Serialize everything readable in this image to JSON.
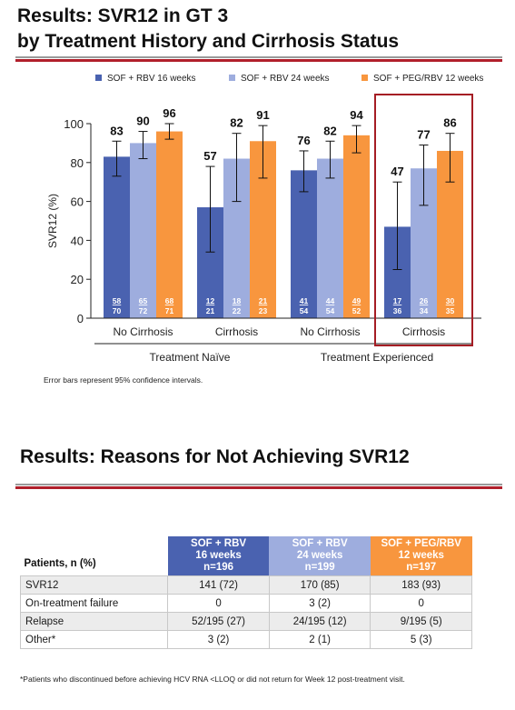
{
  "slide1": {
    "title_line1": "Results: SVR12 in GT 3",
    "title_line2": "by Treatment History and Cirrhosis Status",
    "note": "Error bars represent 95% confidence intervals."
  },
  "chart_data": {
    "type": "bar",
    "ylabel": "SVR12 (%)",
    "ylim": [
      0,
      100
    ],
    "yticks": [
      0,
      20,
      40,
      60,
      80,
      100
    ],
    "categories": [
      "No Cirrhosis",
      "Cirrhosis",
      "No Cirrhosis",
      "Cirrhosis"
    ],
    "groups": [
      {
        "label": "Treatment Naïve",
        "categories": [
          0,
          1
        ]
      },
      {
        "label": "Treatment Experienced",
        "categories": [
          2,
          3
        ]
      }
    ],
    "highlight_category": 3,
    "legend_position": "top",
    "series": [
      {
        "name": "SOF + RBV 16 weeks",
        "color": "#4a62b0",
        "values": [
          83,
          57,
          76,
          47
        ],
        "ci": [
          [
            73,
            91
          ],
          [
            34,
            78
          ],
          [
            65,
            86
          ],
          [
            25,
            70
          ]
        ],
        "n": [
          [
            "58",
            "70"
          ],
          [
            "12",
            "21"
          ],
          [
            "41",
            "54"
          ],
          [
            "17",
            "36"
          ]
        ]
      },
      {
        "name": "SOF + RBV 24 weeks",
        "color": "#9eadde",
        "values": [
          90,
          82,
          82,
          77
        ],
        "ci": [
          [
            82,
            96
          ],
          [
            60,
            95
          ],
          [
            72,
            91
          ],
          [
            58,
            89
          ]
        ],
        "n": [
          [
            "65",
            "72"
          ],
          [
            "18",
            "22"
          ],
          [
            "44",
            "54"
          ],
          [
            "26",
            "34"
          ]
        ]
      },
      {
        "name": "SOF + PEG/RBV 12 weeks",
        "color": "#f8963e",
        "values": [
          96,
          91,
          94,
          86
        ],
        "ci": [
          [
            92,
            100
          ],
          [
            72,
            99
          ],
          [
            85,
            99
          ],
          [
            70,
            95
          ]
        ],
        "n": [
          [
            "68",
            "71"
          ],
          [
            "21",
            "23"
          ],
          [
            "49",
            "52"
          ],
          [
            "30",
            "35"
          ]
        ]
      }
    ]
  },
  "slide2": {
    "title": "Results: Reasons for Not Achieving SVR12",
    "row_header": "Patients, n (%)",
    "columns": [
      {
        "line1": "SOF + RBV",
        "line2": "16 weeks",
        "line3": "n=196",
        "color": "#4a62b0"
      },
      {
        "line1": "SOF + RBV",
        "line2": "24 weeks",
        "line3": "n=199",
        "color": "#9eadde"
      },
      {
        "line1": "SOF + PEG/RBV",
        "line2": "12 weeks",
        "line3": "n=197",
        "color": "#f8963e"
      }
    ],
    "rows": [
      {
        "label": "SVR12",
        "values": [
          "141 (72)",
          "170 (85)",
          "183 (93)"
        ]
      },
      {
        "label": "On-treatment failure",
        "values": [
          "0",
          "3 (2)",
          "0"
        ]
      },
      {
        "label": "Relapse",
        "values": [
          "52/195 (27)",
          "24/195 (12)",
          "9/195 (5)"
        ]
      },
      {
        "label": "Other*",
        "values": [
          "3 (2)",
          "2 (1)",
          "5 (3)"
        ]
      }
    ],
    "footnote": "*Patients who discontinued before achieving HCV RNA <LLOQ or did not return for Week 12 post-treatment visit."
  }
}
